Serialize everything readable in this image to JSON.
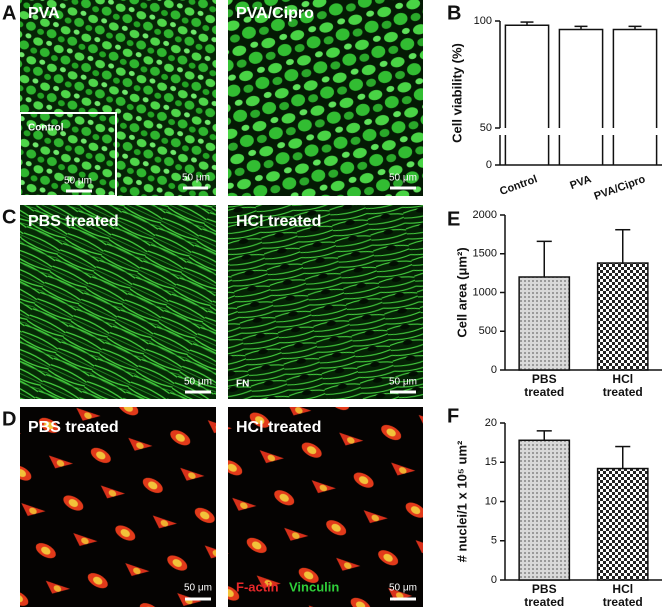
{
  "panel_labels": [
    "A",
    "B",
    "C",
    "D",
    "E",
    "F"
  ],
  "images": [
    {
      "label": "PVA",
      "inset_label": "Control",
      "inset_scale": "50 μm",
      "scale": "50 μm"
    },
    {
      "label": "PVA/Cipro",
      "scale": "50 μm"
    },
    {
      "label": "PBS treated",
      "scale": "50 μm"
    },
    {
      "label": "HCl treated",
      "stain": "FN",
      "scale": "50 μm"
    },
    {
      "label": "PBS treated",
      "scale": "50 μm"
    },
    {
      "label": "HCl treated",
      "stain": [
        "F-actin",
        "Vinculin"
      ],
      "scale": "50 μm"
    }
  ],
  "chart_data": [
    {
      "type": "bar",
      "ylabel": "Cell viability (%)",
      "categories": [
        "Control",
        "PVA",
        "PVA/Cipro"
      ],
      "values": [
        98,
        96,
        96
      ],
      "errors": [
        1.5,
        1.5,
        1.5
      ],
      "ylim": [
        0,
        100
      ],
      "yticks": [
        0,
        50,
        100
      ],
      "ybreak": 50,
      "patterns": [
        "none",
        "none",
        "none"
      ]
    },
    {
      "type": "bar",
      "ylabel": "Cell area (μm²)",
      "categories": [
        "PBS treated",
        "HCl treated"
      ],
      "values": [
        1200,
        1380
      ],
      "errors": [
        460,
        430
      ],
      "ylim": [
        0,
        2000
      ],
      "yticks": [
        0,
        500,
        1000,
        1500,
        2000
      ],
      "patterns": [
        "dots",
        "checker"
      ]
    },
    {
      "type": "bar",
      "ylabel": "# nuclei/1 x 10⁵ um²",
      "categories": [
        "PBS treated",
        "HCl treated"
      ],
      "values": [
        17.8,
        14.2
      ],
      "errors": [
        1.2,
        2.8
      ],
      "ylim": [
        0,
        20
      ],
      "yticks": [
        0,
        5,
        10,
        15,
        20
      ],
      "patterns": [
        "dots",
        "checker"
      ]
    }
  ]
}
